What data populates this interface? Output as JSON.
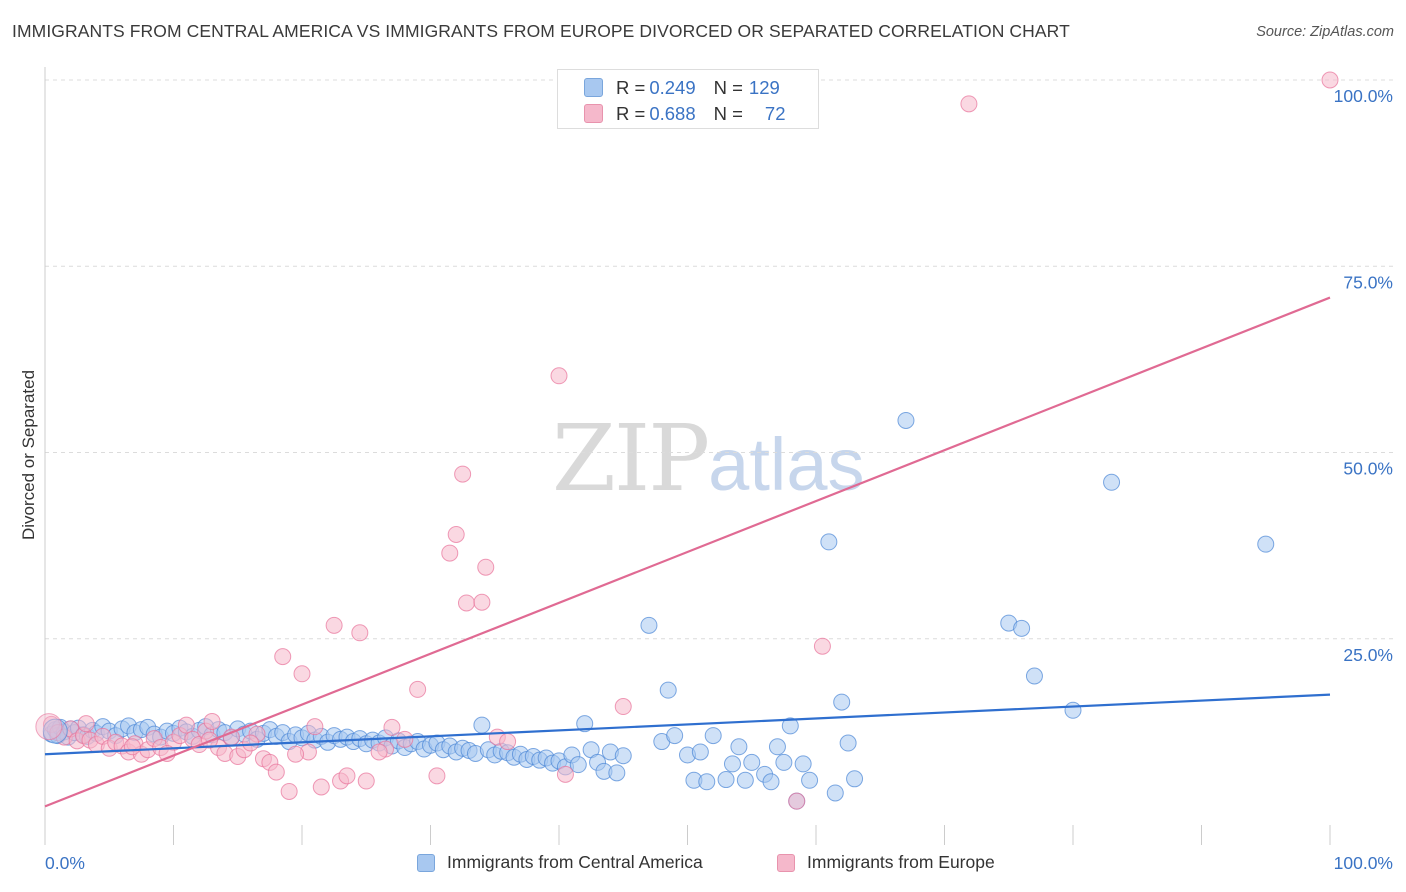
{
  "header": {
    "title": "IMMIGRANTS FROM CENTRAL AMERICA VS IMMIGRANTS FROM EUROPE DIVORCED OR SEPARATED CORRELATION CHART",
    "source": "Source: ZipAtlas.com"
  },
  "watermark": {
    "zip": "ZIP",
    "atlas": "atlas"
  },
  "stats_legend": {
    "rows": [
      {
        "r_label": "R = ",
        "r_value": "0.249",
        "n_label": "N = ",
        "n_value": "129",
        "color": "#a8c8f0"
      },
      {
        "r_label": "R = ",
        "r_value": "0.688",
        "n_label": "N = ",
        "n_value": "72",
        "color": "#f5b8cb"
      }
    ]
  },
  "bottom_legend": {
    "items": [
      {
        "label": "Immigrants from Central America",
        "color": "#a8c8f0"
      },
      {
        "label": "Immigrants from Europe",
        "color": "#f5b8cb"
      }
    ]
  },
  "chart_data": {
    "type": "scatter",
    "title": "IMMIGRANTS FROM CENTRAL AMERICA VS IMMIGRANTS FROM EUROPE DIVORCED OR SEPARATED CORRELATION CHART",
    "xlabel": "",
    "ylabel": "Divorced or Separated",
    "xlim": [
      0,
      100
    ],
    "ylim": [
      0,
      100
    ],
    "x_tick_labels": [
      "0.0%",
      "100.0%"
    ],
    "y_tick_labels": [
      "25.0%",
      "50.0%",
      "75.0%",
      "100.0%"
    ],
    "y_tick_values": [
      25,
      50,
      75,
      100
    ],
    "grid": true,
    "series": [
      {
        "name": "Immigrants from Central America",
        "color": "#4a86d6",
        "fill": "#a8c8f0",
        "trend": {
          "x": [
            0,
            100
          ],
          "y": [
            9.5,
            17.5
          ]
        },
        "points": [
          [
            0.5,
            12.2
          ],
          [
            0.8,
            12.8
          ],
          [
            1.0,
            12.0
          ],
          [
            1.2,
            13.1
          ],
          [
            1.5,
            12.5
          ],
          [
            1.8,
            11.8
          ],
          [
            2.0,
            12.9
          ],
          [
            2.3,
            12.4
          ],
          [
            2.6,
            13.0
          ],
          [
            3.0,
            12.1
          ],
          [
            3.3,
            11.9
          ],
          [
            3.7,
            12.7
          ],
          [
            4.0,
            12.3
          ],
          [
            4.5,
            13.2
          ],
          [
            5.0,
            12.6
          ],
          [
            5.5,
            12.0
          ],
          [
            6.0,
            12.9
          ],
          [
            6.5,
            13.3
          ],
          [
            7.0,
            12.4
          ],
          [
            7.5,
            12.8
          ],
          [
            8.0,
            13.1
          ],
          [
            8.5,
            12.2
          ],
          [
            9.0,
            11.8
          ],
          [
            9.5,
            12.6
          ],
          [
            10.0,
            12.3
          ],
          [
            10.5,
            13.0
          ],
          [
            11.0,
            12.5
          ],
          [
            11.5,
            11.9
          ],
          [
            12.0,
            12.7
          ],
          [
            12.5,
            13.2
          ],
          [
            13.0,
            12.1
          ],
          [
            13.5,
            12.8
          ],
          [
            14.0,
            12.4
          ],
          [
            14.5,
            11.7
          ],
          [
            15.0,
            12.9
          ],
          [
            15.5,
            12.2
          ],
          [
            16.0,
            12.6
          ],
          [
            16.5,
            11.5
          ],
          [
            17.0,
            12.3
          ],
          [
            17.5,
            12.8
          ],
          [
            18.0,
            11.9
          ],
          [
            18.5,
            12.4
          ],
          [
            19.0,
            11.2
          ],
          [
            19.5,
            12.1
          ],
          [
            20.0,
            11.7
          ],
          [
            20.5,
            12.3
          ],
          [
            21.0,
            11.4
          ],
          [
            21.5,
            11.9
          ],
          [
            22.0,
            11.1
          ],
          [
            22.5,
            12.0
          ],
          [
            23.0,
            11.5
          ],
          [
            23.5,
            11.8
          ],
          [
            24.0,
            11.2
          ],
          [
            24.5,
            11.6
          ],
          [
            25.0,
            10.9
          ],
          [
            25.5,
            11.4
          ],
          [
            26.0,
            11.0
          ],
          [
            26.5,
            11.7
          ],
          [
            27.0,
            10.6
          ],
          [
            27.5,
            11.3
          ],
          [
            28.0,
            10.4
          ],
          [
            28.5,
            10.9
          ],
          [
            29.0,
            11.2
          ],
          [
            29.5,
            10.2
          ],
          [
            30.0,
            10.7
          ],
          [
            30.5,
            11.0
          ],
          [
            31.0,
            10.1
          ],
          [
            31.5,
            10.6
          ],
          [
            32.0,
            9.8
          ],
          [
            32.5,
            10.3
          ],
          [
            33.0,
            10.0
          ],
          [
            33.5,
            9.6
          ],
          [
            34.0,
            13.4
          ],
          [
            34.5,
            10.1
          ],
          [
            35.0,
            9.4
          ],
          [
            35.5,
            9.9
          ],
          [
            36.0,
            9.7
          ],
          [
            36.5,
            9.1
          ],
          [
            37.0,
            9.5
          ],
          [
            37.5,
            8.8
          ],
          [
            38.0,
            9.2
          ],
          [
            38.5,
            8.7
          ],
          [
            39.0,
            9.0
          ],
          [
            39.5,
            8.3
          ],
          [
            40.0,
            8.6
          ],
          [
            40.5,
            7.8
          ],
          [
            41.0,
            9.4
          ],
          [
            41.5,
            8.1
          ],
          [
            42.0,
            13.6
          ],
          [
            42.5,
            10.1
          ],
          [
            43.0,
            8.4
          ],
          [
            43.5,
            7.2
          ],
          [
            44.0,
            9.8
          ],
          [
            44.5,
            7.0
          ],
          [
            45.0,
            9.3
          ],
          [
            47.0,
            26.8
          ],
          [
            48.0,
            11.2
          ],
          [
            48.5,
            18.1
          ],
          [
            49.0,
            12.0
          ],
          [
            50.0,
            9.4
          ],
          [
            50.5,
            6.0
          ],
          [
            51.0,
            9.8
          ],
          [
            51.5,
            5.8
          ],
          [
            52.0,
            12.0
          ],
          [
            53.0,
            6.1
          ],
          [
            53.5,
            8.2
          ],
          [
            54.0,
            10.5
          ],
          [
            54.5,
            6.0
          ],
          [
            55.0,
            8.4
          ],
          [
            56.0,
            6.8
          ],
          [
            56.5,
            5.8
          ],
          [
            57.0,
            10.5
          ],
          [
            57.5,
            8.4
          ],
          [
            58.0,
            13.3
          ],
          [
            59.0,
            8.2
          ],
          [
            59.5,
            6.0
          ],
          [
            61.0,
            38.0
          ],
          [
            62.0,
            16.5
          ],
          [
            62.5,
            11.0
          ],
          [
            63.0,
            6.2
          ],
          [
            67.0,
            54.3
          ],
          [
            75.0,
            27.1
          ],
          [
            76.0,
            26.4
          ],
          [
            77.0,
            20.0
          ],
          [
            80.0,
            15.4
          ],
          [
            83.0,
            46.0
          ],
          [
            95.0,
            37.7
          ],
          [
            61.5,
            4.3
          ],
          [
            58.5,
            3.2
          ]
        ]
      },
      {
        "name": "Immigrants from Europe",
        "color": "#e8729a",
        "fill": "#f5b8cb",
        "trend": {
          "x": [
            0,
            100
          ],
          "y": [
            2.5,
            70.8
          ]
        },
        "points": [
          [
            0.5,
            13.5
          ],
          [
            1.0,
            12.4
          ],
          [
            1.5,
            11.8
          ],
          [
            2.0,
            12.9
          ],
          [
            2.5,
            11.3
          ],
          [
            3.0,
            12.0
          ],
          [
            3.5,
            11.4
          ],
          [
            4.0,
            10.8
          ],
          [
            4.5,
            11.9
          ],
          [
            5.0,
            10.3
          ],
          [
            5.5,
            11.1
          ],
          [
            6.0,
            10.6
          ],
          [
            6.5,
            9.8
          ],
          [
            7.0,
            10.9
          ],
          [
            7.5,
            9.5
          ],
          [
            8.0,
            10.1
          ],
          [
            8.5,
            11.6
          ],
          [
            9.0,
            10.4
          ],
          [
            10.0,
            11.1
          ],
          [
            10.5,
            12.0
          ],
          [
            11.0,
            13.4
          ],
          [
            11.5,
            11.5
          ],
          [
            12.0,
            10.8
          ],
          [
            12.5,
            12.6
          ],
          [
            13.0,
            13.9
          ],
          [
            13.5,
            10.4
          ],
          [
            14.0,
            9.6
          ],
          [
            14.5,
            11.8
          ],
          [
            15.0,
            9.2
          ],
          [
            15.5,
            10.1
          ],
          [
            16.5,
            12.2
          ],
          [
            17.0,
            8.9
          ],
          [
            17.5,
            8.4
          ],
          [
            18.0,
            7.1
          ],
          [
            18.5,
            22.6
          ],
          [
            19.0,
            4.5
          ],
          [
            20.0,
            20.3
          ],
          [
            20.5,
            9.8
          ],
          [
            21.0,
            13.2
          ],
          [
            21.5,
            5.1
          ],
          [
            22.5,
            26.8
          ],
          [
            23.0,
            5.9
          ],
          [
            23.5,
            6.6
          ],
          [
            24.5,
            25.8
          ],
          [
            25.0,
            5.9
          ],
          [
            26.5,
            10.2
          ],
          [
            27.0,
            13.1
          ],
          [
            28.0,
            11.5
          ],
          [
            29.0,
            18.2
          ],
          [
            30.5,
            6.6
          ],
          [
            31.5,
            36.5
          ],
          [
            32.0,
            39.0
          ],
          [
            32.5,
            47.1
          ],
          [
            32.8,
            29.8
          ],
          [
            34.3,
            34.6
          ],
          [
            34.0,
            29.9
          ],
          [
            35.2,
            11.8
          ],
          [
            36.0,
            11.2
          ],
          [
            40.0,
            60.3
          ],
          [
            40.5,
            6.8
          ],
          [
            45.0,
            15.9
          ],
          [
            60.5,
            24.0
          ],
          [
            71.9,
            96.8
          ],
          [
            100.0,
            100.0
          ],
          [
            3.2,
            13.6
          ],
          [
            6.8,
            10.5
          ],
          [
            12.8,
            11.4
          ],
          [
            16.0,
            11.0
          ],
          [
            19.5,
            9.5
          ],
          [
            26.0,
            9.8
          ],
          [
            9.5,
            9.6
          ],
          [
            58.5,
            3.2
          ]
        ]
      }
    ]
  }
}
